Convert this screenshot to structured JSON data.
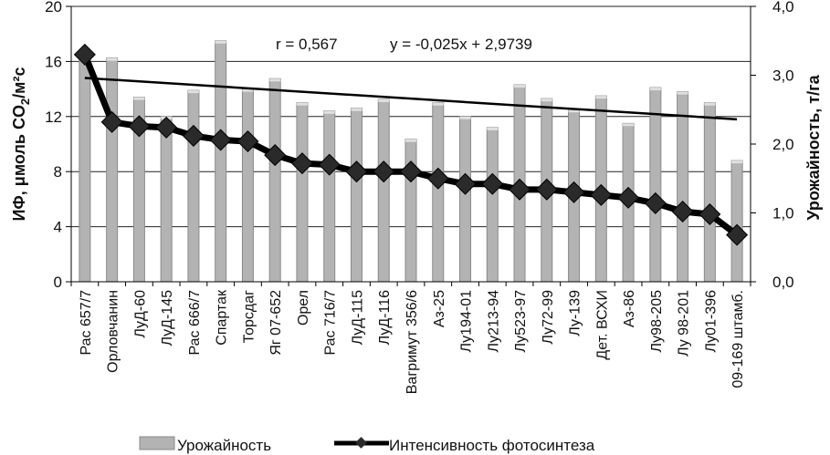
{
  "chart_data": {
    "type": "bar+line",
    "categories": [
      "Рас 657/7",
      "Орловчанин",
      "ЛуД-60",
      "ЛуД-145",
      "Рас 666/7",
      "Спартак",
      "Торсдаг",
      "Яг 07-652",
      "Орел",
      "Рас 716/7",
      "ЛуД-115",
      "ЛуД-116",
      "Вагримут 356/6",
      "Аз-25",
      "Лу194-01",
      "Лу213-94",
      "Лу523-97",
      "Лу72-99",
      "Лу-139",
      "Дет. ВСХИ",
      "Аз-86",
      "Лу98-205",
      "Лу 98-201",
      "Лу01-396",
      "09-169 штамб."
    ],
    "series": [
      {
        "name": "Урожайность",
        "type": "bar",
        "axis": "right",
        "values": [
          3.25,
          3.25,
          2.68,
          2.4,
          2.78,
          3.5,
          2.8,
          2.95,
          2.6,
          2.48,
          2.52,
          2.65,
          2.07,
          2.6,
          2.4,
          2.24,
          2.86,
          2.66,
          2.5,
          2.7,
          2.3,
          2.82,
          2.76,
          2.6,
          1.76
        ]
      },
      {
        "name": "Интенсивность фотосинтеза",
        "type": "line",
        "axis": "left",
        "values": [
          16.5,
          11.6,
          11.3,
          11.2,
          10.6,
          10.3,
          10.2,
          9.2,
          8.6,
          8.5,
          8.0,
          8.0,
          8.0,
          7.5,
          7.1,
          7.1,
          6.7,
          6.7,
          6.5,
          6.3,
          6.1,
          5.7,
          5.1,
          4.9,
          3.4
        ]
      }
    ],
    "trendline": {
      "axis": "left",
      "start": 14.8,
      "end": 11.8
    },
    "annotations": {
      "r": "r = 0,567",
      "equation": "y = -0,025x + 2,9739"
    },
    "left_axis": {
      "label": "ИФ, μмоль CO",
      "label_sub": "2",
      "label_tail": "/м²с",
      "ylim": [
        0,
        20
      ],
      "ticks": [
        "0",
        "4",
        "8",
        "12",
        "16",
        "20"
      ]
    },
    "right_axis": {
      "label": "Урожайность, т/га",
      "ylim": [
        0,
        4
      ],
      "ticks": [
        "0,0",
        "1,0",
        "2,0",
        "3,0",
        "4,0"
      ]
    },
    "legend": {
      "position": "bottom",
      "items": [
        "Урожайность",
        "Интенсивность фотосинтеза"
      ]
    },
    "grid": true
  },
  "colors": {
    "bar_fill": "#b3b3b3",
    "bar_stroke": "#8a8a8a",
    "line": "#000000",
    "marker": "#2a2a2a",
    "trend": "#000000",
    "grid": "#222222"
  }
}
